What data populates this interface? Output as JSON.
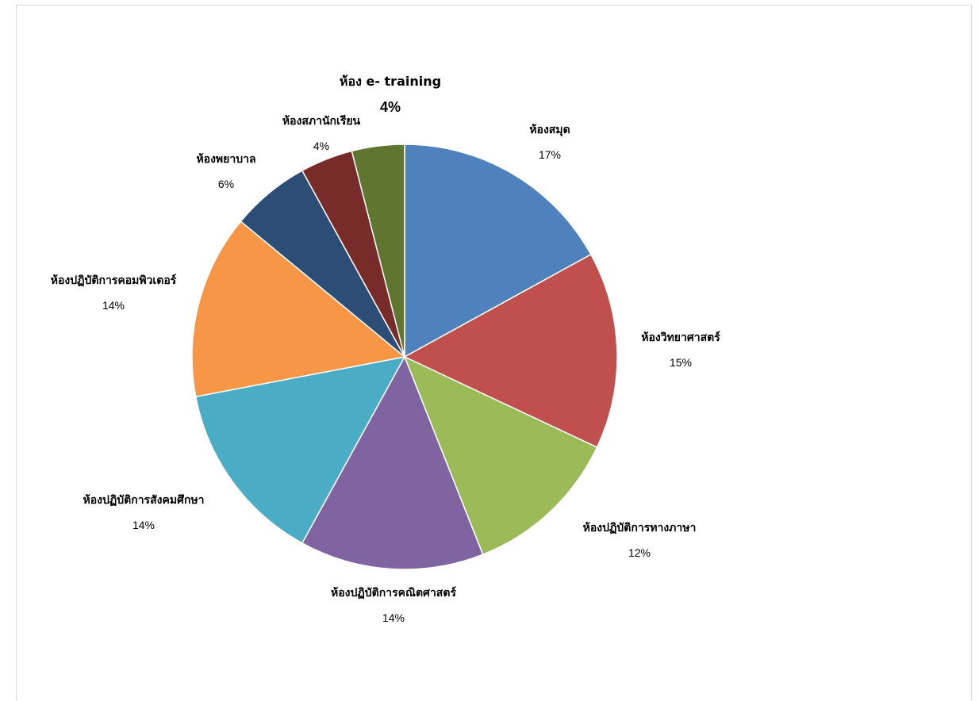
{
  "chart_data": {
    "type": "pie",
    "title_fragment": "ู",
    "start_angle_deg": 0,
    "direction": "clockwise",
    "slices": [
      {
        "name": "ห้องสมุด",
        "value": 17,
        "label": "17%",
        "color": "#4F81BD"
      },
      {
        "name": "ห้องวิทยาศาสตร์",
        "value": 15,
        "label": "15%",
        "color": "#C0504D"
      },
      {
        "name": "ห้องปฏิบัติการทางภาษา",
        "value": 12,
        "label": "12%",
        "color": "#9BBB59"
      },
      {
        "name": "ห้องปฏิบัติการคณิตศาสตร์",
        "value": 14,
        "label": "14%",
        "color": "#8064A2"
      },
      {
        "name": "ห้องปฏิบัติการสังคมศึกษา",
        "value": 14,
        "label": "14%",
        "color": "#4BACC6"
      },
      {
        "name": "ห้องปฏิบัติการคอมพิวเตอร์",
        "value": 14,
        "label": "14%",
        "color": "#F79646"
      },
      {
        "name": "ห้องพยาบาล",
        "value": 6,
        "label": "6%",
        "color": "#2C4D75"
      },
      {
        "name": "ห้องสภานักเรียน",
        "value": 4,
        "label": "4%",
        "color": "#772C2A"
      },
      {
        "name": "ห้อง e- training",
        "value": 4,
        "label": "4%",
        "color": "#5F7530"
      }
    ]
  }
}
